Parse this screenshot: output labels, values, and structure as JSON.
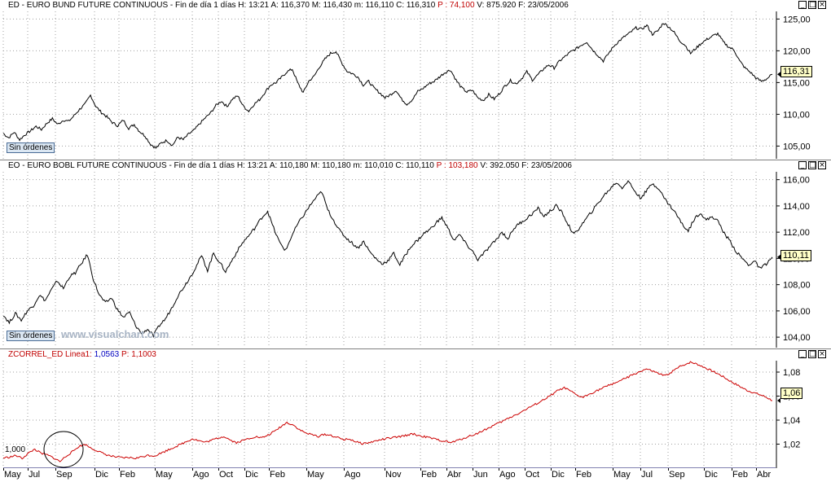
{
  "panels": [
    {
      "id": "bund",
      "header": {
        "name": "ED - EURO BUND FUTURE CONTINUOUS",
        "info": "- Fin de día 1 días  H: 13:21  A: 116,370  M: 116,430  m: 116,110  C: 116,310",
        "p": "P : 74,100",
        "tail": "V: 875.920  F: 23/05/2006"
      },
      "last_label": "116,31",
      "badge": "Sin órdenes",
      "chart_data": {
        "type": "line",
        "y_ticks": [
          "125,00",
          "120,00",
          "115,00",
          "110,00",
          "105,00"
        ],
        "y_tick_values": [
          125,
          120,
          115,
          110,
          105
        ],
        "ylim": [
          103.0,
          126.2
        ],
        "color": "#000000",
        "values": [
          107.0,
          106.3,
          107.2,
          106.0,
          106.8,
          107.4,
          108.1,
          107.6,
          108.6,
          109.3,
          108.4,
          109.1,
          108.9,
          109.8,
          110.8,
          111.6,
          113.0,
          111.2,
          110.3,
          109.6,
          108.7,
          108.2,
          109.1,
          107.8,
          108.4,
          107.3,
          106.6,
          105.3,
          104.7,
          105.5,
          105.9,
          105.1,
          106.4,
          106.0,
          106.9,
          107.5,
          108.5,
          109.4,
          110.2,
          111.4,
          112.1,
          111.2,
          112.4,
          112.9,
          111.3,
          110.5,
          111.6,
          112.3,
          113.5,
          114.6,
          115.0,
          115.8,
          116.7,
          117.1,
          114.9,
          113.4,
          115.2,
          116.0,
          117.5,
          118.7,
          119.6,
          119.9,
          118.2,
          116.8,
          116.4,
          115.9,
          114.6,
          115.2,
          114.1,
          113.4,
          112.6,
          113.1,
          113.8,
          112.4,
          111.6,
          112.3,
          113.6,
          114.1,
          114.8,
          115.2,
          115.9,
          116.6,
          117.0,
          115.4,
          114.2,
          113.5,
          113.8,
          112.6,
          112.2,
          113.1,
          112.4,
          113.3,
          114.5,
          115.3,
          114.8,
          115.6,
          116.7,
          115.4,
          116.2,
          117.1,
          117.8,
          117.3,
          118.4,
          119.1,
          119.8,
          120.3,
          120.9,
          121.4,
          120.2,
          119.3,
          118.4,
          119.6,
          120.8,
          121.6,
          122.3,
          122.9,
          123.6,
          123.4,
          124.0,
          122.6,
          123.1,
          124.4,
          123.8,
          122.9,
          121.6,
          120.9,
          119.6,
          120.4,
          121.2,
          121.8,
          122.3,
          122.7,
          121.4,
          120.6,
          120.1,
          118.4,
          117.3,
          116.6,
          115.7,
          115.2,
          115.6,
          116.3
        ]
      }
    },
    {
      "id": "bobl",
      "header": {
        "name": "EO - EURO BOBL FUTURE CONTINUOUS",
        "info": "- Fin de día 1 días  H: 13:21  A: 110,180  M: 110,180  m: 110,010  C: 110,110",
        "p": "P : 103,180",
        "tail": "V: 392.050  F: 23/05/2006"
      },
      "last_label": "110,11",
      "badge": "Sin órdenes",
      "watermark": "www.visualchart.com",
      "chart_data": {
        "type": "line",
        "y_ticks": [
          "116,00",
          "114,00",
          "112,00",
          "110,00",
          "108,00",
          "106,00",
          "104,00"
        ],
        "y_tick_values": [
          116,
          114,
          112,
          110,
          108,
          106,
          104
        ],
        "ylim": [
          103.2,
          116.6
        ],
        "color": "#000000",
        "values": [
          105.7,
          105.1,
          105.8,
          105.3,
          106.0,
          106.4,
          107.2,
          106.8,
          107.6,
          108.3,
          107.7,
          108.6,
          108.9,
          109.6,
          110.3,
          108.4,
          107.2,
          106.6,
          107.0,
          106.1,
          105.5,
          105.9,
          104.9,
          104.3,
          104.6,
          104.1,
          104.9,
          105.4,
          106.2,
          107.1,
          107.8,
          108.5,
          109.3,
          110.2,
          109.1,
          110.4,
          109.7,
          109.0,
          109.8,
          110.6,
          111.3,
          111.8,
          112.4,
          113.1,
          113.6,
          112.3,
          111.2,
          110.6,
          111.7,
          112.6,
          113.3,
          114.0,
          114.6,
          115.1,
          113.7,
          112.9,
          112.1,
          111.6,
          111.2,
          110.8,
          111.3,
          110.5,
          110.0,
          109.6,
          109.8,
          110.4,
          109.5,
          110.3,
          111.0,
          111.4,
          111.9,
          112.2,
          112.7,
          113.1,
          112.3,
          111.4,
          111.8,
          111.1,
          110.6,
          109.9,
          110.4,
          110.9,
          111.4,
          112.0,
          111.5,
          112.3,
          112.7,
          113.0,
          113.4,
          113.8,
          113.2,
          113.6,
          114.0,
          113.5,
          112.6,
          111.8,
          112.4,
          113.0,
          113.6,
          114.2,
          114.8,
          115.3,
          115.8,
          115.4,
          115.9,
          115.2,
          114.6,
          115.1,
          115.7,
          115.4,
          114.6,
          114.0,
          113.4,
          112.6,
          112.1,
          113.0,
          113.5,
          112.9,
          113.2,
          112.8,
          111.9,
          111.3,
          110.5,
          110.0,
          109.5,
          109.8,
          109.2,
          109.6,
          110.1
        ]
      }
    },
    {
      "id": "zcorrel",
      "header": {
        "name": "ZCORREL_ED",
        "linea": "Linea1:",
        "linea_value": "1,0563",
        "p": "P: 1,1003"
      },
      "last_label": "1,06",
      "baseline_label": "1,000",
      "chart_data": {
        "type": "line",
        "y_ticks": [
          "1,08",
          "1,06",
          "1,04",
          "1,02"
        ],
        "y_tick_values": [
          1.08,
          1.06,
          1.04,
          1.02
        ],
        "ylim": [
          1.0,
          1.0895
        ],
        "baseline": 1.0,
        "color": "#cc0000",
        "baseline_color": "#000060",
        "values": [
          1.0085,
          1.0092,
          1.0105,
          1.0082,
          1.0125,
          1.0158,
          1.0123,
          1.011,
          1.0085,
          1.0055,
          1.0102,
          1.0138,
          1.0182,
          1.0198,
          1.0165,
          1.0142,
          1.0118,
          1.0102,
          1.0092,
          1.0085,
          1.0088,
          1.0082,
          1.0095,
          1.0108,
          1.0102,
          1.0125,
          1.0148,
          1.0172,
          1.0195,
          1.022,
          1.0245,
          1.023,
          1.0215,
          1.0232,
          1.025,
          1.0265,
          1.0235,
          1.0212,
          1.023,
          1.0248,
          1.0262,
          1.0252,
          1.0275,
          1.0305,
          1.0345,
          1.038,
          1.036,
          1.032,
          1.0292,
          1.0278,
          1.0265,
          1.0282,
          1.0272,
          1.0255,
          1.0238,
          1.0242,
          1.0218,
          1.0205,
          1.0212,
          1.0225,
          1.0238,
          1.0248,
          1.0255,
          1.0262,
          1.0275,
          1.0285,
          1.027,
          1.026,
          1.0248,
          1.0235,
          1.0225,
          1.0212,
          1.023,
          1.0248,
          1.0268,
          1.0285,
          1.031,
          1.0335,
          1.0362,
          1.0385,
          1.0412,
          1.0438,
          1.0462,
          1.0492,
          1.052,
          1.0548,
          1.0578,
          1.061,
          1.0648,
          1.0668,
          1.0642,
          1.0605,
          1.059,
          1.0618,
          1.0642,
          1.0665,
          1.0688,
          1.071,
          1.0732,
          1.0755,
          1.078,
          1.0805,
          1.0825,
          1.0808,
          1.0786,
          1.0768,
          1.08,
          1.0835,
          1.0862,
          1.0882,
          1.0868,
          1.0845,
          1.082,
          1.0796,
          1.0768,
          1.0735,
          1.0705,
          1.0676,
          1.0648,
          1.063,
          1.0612,
          1.0592,
          1.0563
        ]
      }
    }
  ],
  "x_axis": {
    "labels": [
      "May",
      "Jul",
      "Sep",
      "Dic",
      "Feb",
      "May",
      "Ago",
      "Oct",
      "Dic",
      "Feb",
      "May",
      "Ago",
      "Nov",
      "Feb",
      "Abr",
      "Jun",
      "Ago",
      "Oct",
      "Dic",
      "Feb",
      "May",
      "Jul",
      "Sep",
      "Dic",
      "Feb",
      "Abr"
    ],
    "positions_x": [
      4,
      34,
      68,
      116,
      146,
      190,
      236,
      268,
      300,
      330,
      376,
      422,
      472,
      516,
      548,
      580,
      612,
      644,
      676,
      706,
      752,
      786,
      820,
      864,
      898,
      928
    ]
  },
  "window_buttons": [
    "_",
    "□",
    "×"
  ]
}
